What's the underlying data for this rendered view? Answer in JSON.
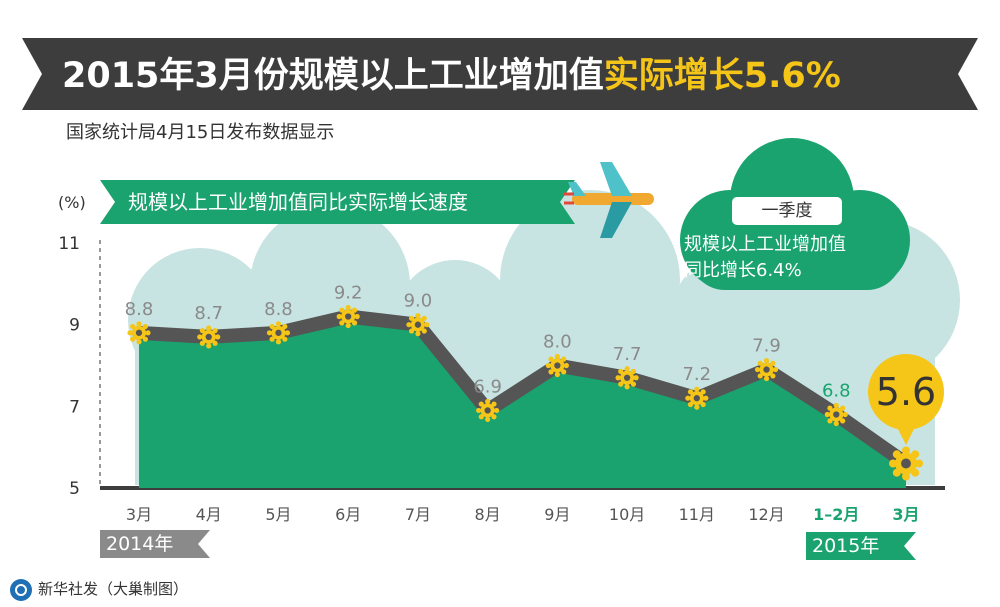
{
  "header": {
    "title_main": "2015年3月份规模以上工业增加值",
    "title_highlight": "实际增长5.6%",
    "subtitle": "国家统计局4月15日发布数据显示"
  },
  "colors": {
    "banner": "#3d3d3d",
    "area_green": "#1aa36f",
    "cloud": "#c7e4e2",
    "line": "#555555",
    "marker": "#f5c518",
    "highlight_label": "#1aa36f"
  },
  "cloud": {
    "tag": "一季度",
    "text_line1": "规模以上工业增加值",
    "text_line2": "同比增长6.4%"
  },
  "icons": [
    "airplane-icon",
    "gear-marker-icon",
    "xinhua-logo-icon"
  ],
  "years": {
    "first": "2014年",
    "second": "2015年"
  },
  "footer": {
    "credit": "新华社发（大巢制图）"
  },
  "chart_data": {
    "type": "area",
    "title": "规模以上工业增加值同比实际增长速度",
    "ylabel": "(%)",
    "xlabel": "",
    "categories": [
      "3月",
      "4月",
      "5月",
      "6月",
      "7月",
      "8月",
      "9月",
      "10月",
      "11月",
      "12月",
      "1–2月",
      "3月"
    ],
    "values": [
      8.8,
      8.7,
      8.8,
      9.2,
      9.0,
      6.9,
      8.0,
      7.7,
      7.2,
      7.9,
      6.8,
      5.6
    ],
    "value_labels": [
      "8.8",
      "8.7",
      "8.8",
      "9.2",
      "9.0",
      "6.9",
      "8.0",
      "7.7",
      "7.2",
      "7.9",
      "6.8",
      "5.6"
    ],
    "yticks": [
      "5",
      "7",
      "9",
      "11"
    ],
    "ylim": [
      5,
      11
    ],
    "grid": false,
    "legend": "none"
  }
}
